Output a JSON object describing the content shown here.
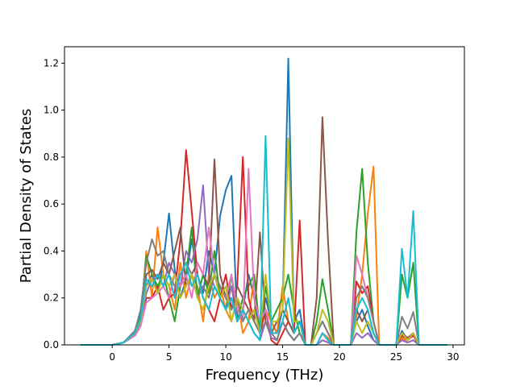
{
  "chart_data": {
    "type": "line",
    "title": "",
    "xlabel": "Frequency (THz)",
    "ylabel": "Partial Density of States",
    "xlim": [
      -4.2,
      31.0
    ],
    "ylim": [
      0.0,
      1.27
    ],
    "xticks": [
      0,
      5,
      10,
      15,
      20,
      25,
      30
    ],
    "yticks": [
      0.0,
      0.2,
      0.4,
      0.6,
      0.8,
      1.0,
      1.2
    ],
    "xtick_labels": [
      "0",
      "5",
      "10",
      "15",
      "20",
      "25",
      "30"
    ],
    "ytick_labels": [
      "0.0",
      "0.2",
      "0.4",
      "0.6",
      "0.8",
      "1.0",
      "1.2"
    ],
    "grid": false,
    "legend": "none",
    "x": [
      -2.8,
      0.0,
      1.0,
      2.0,
      2.5,
      3.0,
      3.5,
      4.0,
      4.5,
      5.0,
      5.5,
      6.0,
      6.5,
      7.0,
      7.5,
      8.0,
      8.5,
      9.0,
      9.5,
      10.0,
      10.5,
      11.0,
      11.5,
      12.0,
      12.5,
      13.0,
      13.5,
      14.0,
      14.5,
      15.0,
      15.5,
      16.0,
      16.5,
      17.0,
      17.5,
      18.0,
      18.5,
      19.0,
      19.5,
      20.0,
      20.5,
      21.0,
      21.5,
      22.0,
      22.5,
      23.0,
      23.5,
      24.0,
      24.5,
      25.0,
      25.5,
      26.0,
      26.5,
      27.0,
      27.5,
      28.0,
      28.5,
      29.5
    ],
    "series": [
      {
        "color": "#1f77b4",
        "values": [
          0,
          0,
          0.01,
          0.06,
          0.14,
          0.25,
          0.3,
          0.22,
          0.35,
          0.56,
          0.32,
          0.2,
          0.28,
          0.45,
          0.3,
          0.22,
          0.4,
          0.3,
          0.55,
          0.66,
          0.72,
          0.1,
          0.15,
          0.3,
          0.2,
          0.05,
          0.2,
          0.1,
          0.05,
          0.15,
          1.22,
          0.1,
          0.15,
          0,
          0,
          0.05,
          0.1,
          0.05,
          0,
          0,
          0,
          0,
          0.1,
          0.15,
          0.08,
          0.02,
          0,
          0,
          0,
          0,
          0.06,
          0.02,
          0.05,
          0,
          0,
          0,
          0,
          0
        ]
      },
      {
        "color": "#ff7f0e",
        "values": [
          0,
          0,
          0.01,
          0.05,
          0.1,
          0.4,
          0.2,
          0.5,
          0.3,
          0.25,
          0.15,
          0.35,
          0.2,
          0.3,
          0.25,
          0.1,
          0.3,
          0.2,
          0.25,
          0.15,
          0.1,
          0.2,
          0.05,
          0.1,
          0.3,
          0.05,
          0.15,
          0.1,
          0.05,
          0.25,
          0.1,
          0.05,
          0.1,
          0,
          0,
          0,
          0.05,
          0.03,
          0,
          0,
          0,
          0,
          0.12,
          0.3,
          0.56,
          0.76,
          0,
          0,
          0,
          0,
          0.03,
          0.01,
          0.02,
          0,
          0,
          0,
          0,
          0
        ]
      },
      {
        "color": "#2ca02c",
        "values": [
          0,
          0,
          0.01,
          0.05,
          0.12,
          0.38,
          0.3,
          0.25,
          0.3,
          0.2,
          0.1,
          0.25,
          0.3,
          0.5,
          0.2,
          0.3,
          0.22,
          0.4,
          0.2,
          0.15,
          0.3,
          0.1,
          0.2,
          0.25,
          0.3,
          0.05,
          0.25,
          0.1,
          0.15,
          0.2,
          0.3,
          0.15,
          0.05,
          0,
          0,
          0.1,
          0.28,
          0.15,
          0,
          0,
          0,
          0,
          0.48,
          0.75,
          0.35,
          0.1,
          0,
          0,
          0,
          0,
          0.3,
          0.2,
          0.35,
          0,
          0,
          0,
          0,
          0
        ]
      },
      {
        "color": "#d62728",
        "values": [
          0,
          0,
          0.01,
          0.04,
          0.08,
          0.2,
          0.2,
          0.25,
          0.15,
          0.2,
          0.22,
          0.45,
          0.83,
          0.57,
          0.3,
          0.2,
          0.15,
          0.1,
          0.2,
          0.3,
          0.15,
          0.25,
          0.8,
          0.2,
          0.1,
          0.05,
          0.15,
          0.02,
          0,
          0.05,
          0.1,
          0.05,
          0.53,
          0,
          0,
          0,
          0.05,
          0.02,
          0,
          0,
          0,
          0,
          0.27,
          0.22,
          0.25,
          0.1,
          0,
          0,
          0,
          0,
          0.04,
          0.02,
          0.04,
          0,
          0,
          0,
          0,
          0
        ]
      },
      {
        "color": "#9467bd",
        "values": [
          0,
          0,
          0.01,
          0.04,
          0.09,
          0.22,
          0.28,
          0.3,
          0.25,
          0.35,
          0.3,
          0.25,
          0.4,
          0.35,
          0.45,
          0.68,
          0.3,
          0.25,
          0.2,
          0.15,
          0.25,
          0.1,
          0.15,
          0.1,
          0.05,
          0.02,
          0.1,
          0.03,
          0.02,
          0.1,
          0.05,
          0.02,
          0.05,
          0,
          0,
          0,
          0.02,
          0.01,
          0,
          0,
          0,
          0,
          0.05,
          0.03,
          0.05,
          0.02,
          0,
          0,
          0,
          0,
          0.02,
          0.01,
          0.02,
          0,
          0,
          0,
          0,
          0
        ]
      },
      {
        "color": "#8c564b",
        "values": [
          0,
          0,
          0.01,
          0.05,
          0.1,
          0.3,
          0.32,
          0.28,
          0.35,
          0.3,
          0.4,
          0.5,
          0.25,
          0.3,
          0.35,
          0.3,
          0.25,
          0.79,
          0.3,
          0.2,
          0.15,
          0.25,
          0.2,
          0.15,
          0.1,
          0.48,
          0.1,
          0.05,
          0.1,
          0.15,
          0.1,
          0.05,
          0.1,
          0,
          0,
          0.2,
          0.97,
          0.44,
          0,
          0,
          0,
          0,
          0.15,
          0.1,
          0.15,
          0.05,
          0,
          0,
          0,
          0,
          0.05,
          0.03,
          0.05,
          0,
          0,
          0,
          0,
          0
        ]
      },
      {
        "color": "#e377c2",
        "values": [
          0,
          0,
          0.01,
          0.04,
          0.08,
          0.18,
          0.2,
          0.22,
          0.25,
          0.2,
          0.3,
          0.25,
          0.3,
          0.2,
          0.35,
          0.3,
          0.5,
          0.3,
          0.25,
          0.2,
          0.3,
          0.15,
          0.1,
          0.75,
          0.2,
          0.1,
          0.15,
          0.05,
          0.05,
          0.1,
          0.05,
          0.02,
          0.05,
          0,
          0,
          0,
          0.05,
          0.02,
          0,
          0,
          0,
          0,
          0.38,
          0.3,
          0.2,
          0.1,
          0,
          0,
          0,
          0,
          0.05,
          0.02,
          0.05,
          0,
          0,
          0,
          0,
          0
        ]
      },
      {
        "color": "#7f7f7f",
        "values": [
          0,
          0,
          0.01,
          0.06,
          0.15,
          0.35,
          0.45,
          0.38,
          0.4,
          0.3,
          0.25,
          0.3,
          0.35,
          0.3,
          0.2,
          0.25,
          0.2,
          0.3,
          0.25,
          0.2,
          0.15,
          0.2,
          0.1,
          0.15,
          0.1,
          0.05,
          0.1,
          0.05,
          0.02,
          0.1,
          0.05,
          0.02,
          0.05,
          0,
          0,
          0.05,
          0.1,
          0.05,
          0,
          0,
          0,
          0,
          0.2,
          0.25,
          0.2,
          0.1,
          0,
          0,
          0,
          0,
          0.12,
          0.07,
          0.14,
          0,
          0,
          0,
          0,
          0
        ]
      },
      {
        "color": "#bcbd22",
        "values": [
          0,
          0,
          0.01,
          0.05,
          0.1,
          0.25,
          0.28,
          0.22,
          0.3,
          0.25,
          0.3,
          0.2,
          0.25,
          0.3,
          0.2,
          0.15,
          0.25,
          0.3,
          0.2,
          0.25,
          0.1,
          0.2,
          0.15,
          0.1,
          0.15,
          0.05,
          0.3,
          0.1,
          0.1,
          0.15,
          0.88,
          0.1,
          0.1,
          0,
          0,
          0.05,
          0.15,
          0.1,
          0,
          0,
          0,
          0,
          0.1,
          0.05,
          0.1,
          0.05,
          0,
          0,
          0,
          0,
          0.05,
          0.02,
          0.05,
          0,
          0,
          0,
          0,
          0
        ]
      },
      {
        "color": "#17becf",
        "values": [
          0,
          0,
          0.01,
          0.05,
          0.11,
          0.28,
          0.25,
          0.3,
          0.25,
          0.3,
          0.2,
          0.3,
          0.35,
          0.25,
          0.3,
          0.2,
          0.15,
          0.25,
          0.2,
          0.15,
          0.2,
          0.1,
          0.15,
          0.1,
          0.05,
          0.02,
          0.89,
          0.05,
          0.05,
          0.1,
          0.2,
          0.05,
          0.1,
          0,
          0,
          0,
          0.05,
          0.02,
          0,
          0,
          0,
          0,
          0.15,
          0.2,
          0.15,
          0.05,
          0,
          0,
          0,
          0,
          0.41,
          0.2,
          0.57,
          0,
          0,
          0,
          0,
          0
        ]
      }
    ]
  }
}
